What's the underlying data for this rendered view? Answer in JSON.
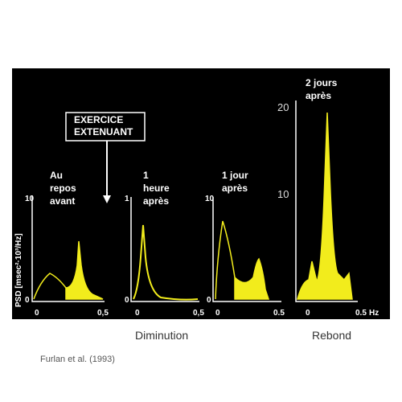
{
  "callout": [
    "EXERCICE",
    "EXTENUANT"
  ],
  "y_axis_label": "PSD [msec²·10³/Hz]",
  "panels": [
    {
      "title_lines": [
        "Au",
        "repos",
        "avant"
      ],
      "y_ticks": [
        "10",
        "0"
      ],
      "x_ticks": [
        "0",
        "0,5"
      ]
    },
    {
      "title_lines": [
        "1",
        "heure",
        "après"
      ],
      "y_ticks": [
        "1",
        "0"
      ],
      "x_ticks": [
        "0",
        "0,5"
      ]
    },
    {
      "title_lines": [
        "1 jour",
        "après"
      ],
      "y_ticks": [
        "10",
        "0"
      ],
      "x_ticks": [
        "0",
        "0.5"
      ]
    },
    {
      "title_lines": [
        "2 jours",
        "après"
      ],
      "y_ticks": [
        "20",
        "10"
      ],
      "x_ticks": [
        "0",
        "0.5",
        "Hz"
      ]
    }
  ],
  "captions": [
    "Diminution",
    "Rebond"
  ],
  "source": "Furlan et al. (1993)"
}
